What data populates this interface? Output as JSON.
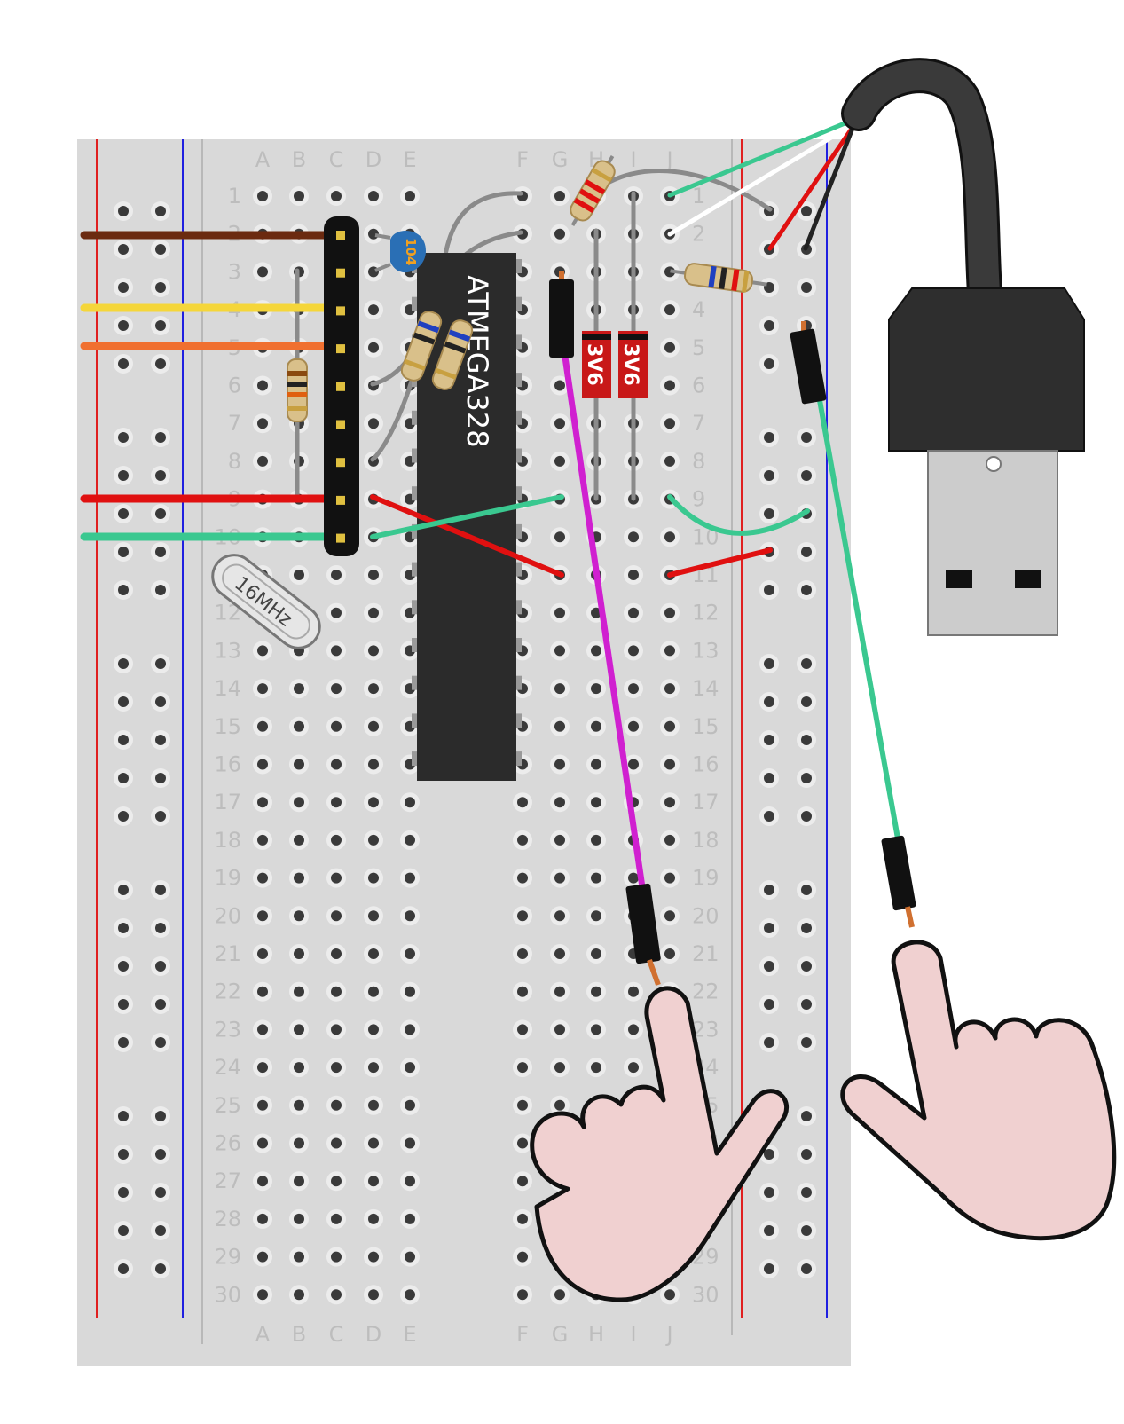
{
  "breadboard": {
    "rows": [
      "1",
      "2",
      "3",
      "4",
      "5",
      "6",
      "7",
      "8",
      "9",
      "10",
      "11",
      "12",
      "13",
      "14",
      "15",
      "16",
      "17",
      "18",
      "19",
      "20",
      "21",
      "22",
      "23",
      "24",
      "25",
      "26",
      "27",
      "28",
      "29",
      "30"
    ],
    "left_columns": [
      "A",
      "B",
      "C",
      "D",
      "E"
    ],
    "right_columns": [
      "F",
      "G",
      "H",
      "I",
      "J"
    ],
    "colors": {
      "board": "#d9d9d9",
      "hole": "#3a3a3a",
      "label": "#bdbdbd",
      "rail_red": "#e02020",
      "rail_blue": "#2020e0"
    }
  },
  "chip": {
    "label": "ATMEGA328",
    "color": "#2b2b2b"
  },
  "capacitor": {
    "label": "104",
    "color": "#2a6fb5"
  },
  "crystal": {
    "label": "16MHz"
  },
  "zener_diodes": [
    {
      "label": "3V6"
    },
    {
      "label": "3V6"
    }
  ],
  "wire_colors": {
    "brown": "#6b2a10",
    "yellow": "#f5d63a",
    "orange": "#f07030",
    "red": "#e01010",
    "green": "#3ac890",
    "grey": "#8a8a8a",
    "magenta": "#d020d0",
    "white": "#ffffff",
    "black": "#222222",
    "cable": "#3a3a3a"
  },
  "hand_color": "#f0d0d0",
  "usb": {
    "body_color": "#2e2e2e",
    "plug_color": "#cccccc"
  }
}
